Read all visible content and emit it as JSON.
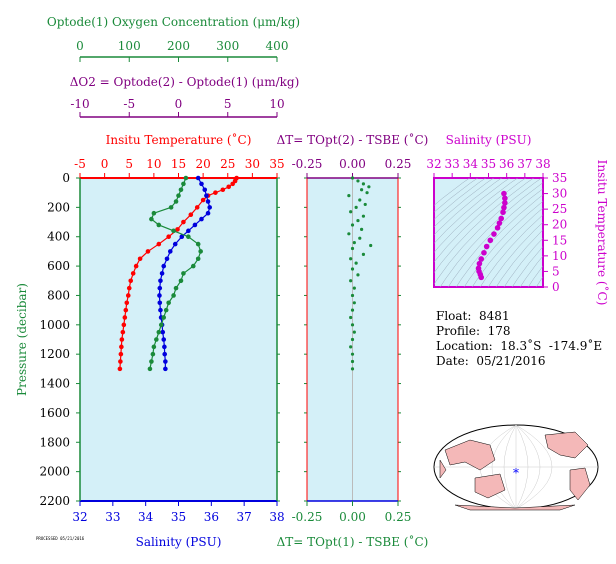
{
  "colors": {
    "bg": "#d4f0f8",
    "red": "#ff0000",
    "blue": "#0000dd",
    "green": "#1a8a3a",
    "purple": "#800080",
    "magenta": "#cc00cc",
    "grid": "#a0c8d8"
  },
  "labels": {
    "oxygen_title": "Optode(1) Oxygen Concentration (μm/kg)",
    "delta_o2_title": "ΔO2 = Optode(2) - Optode(1)   (μm/kg)",
    "temp_title": "Insitu Temperature (˚C)",
    "salinity_bottom": "Salinity (PSU)",
    "pressure_axis": "Pressure (decibar)",
    "dt_top_title": "ΔT= TOpt(2) - TSBE (˚C)",
    "dt_bottom_title": "ΔT= TOpt(1) - TSBE (˚C)",
    "salinity_inset_title": "Salinity (PSU)",
    "inset_temp_axis": "Insitu Temperature (˚C)"
  },
  "info": {
    "float": "Float:  8481",
    "profile": "Profile:  178",
    "location": "Location:  18.3˚S  -174.9˚E",
    "date": "Date:  05/21/2016"
  },
  "footer_tiny": "PROCESSED 05/21/2016",
  "ticks": {
    "oxygen": [
      "0",
      "100",
      "200",
      "300",
      "400"
    ],
    "delta_o2": [
      "-10",
      "-5",
      "0",
      "5",
      "10"
    ],
    "temperature": [
      "-5",
      "0",
      "5",
      "10",
      "15",
      "20",
      "25",
      "30",
      "35"
    ],
    "salinity": [
      "32",
      "33",
      "34",
      "35",
      "36",
      "37",
      "38"
    ],
    "pressure": [
      "0",
      "200",
      "400",
      "600",
      "800",
      "1000",
      "1200",
      "1400",
      "1600",
      "1800",
      "2000",
      "2200"
    ],
    "dt": [
      "-0.25",
      "0.00",
      "0.25"
    ],
    "inset_salinity": [
      "32",
      "33",
      "34",
      "35",
      "36",
      "37",
      "38"
    ],
    "inset_temp": [
      "0",
      "5",
      "10",
      "15",
      "20",
      "25",
      "30",
      "35"
    ]
  },
  "chart_data": [
    {
      "type": "line",
      "title": "Insitu Temperature (˚C)",
      "ylabel": "Pressure (decibar)",
      "ylim": [
        2200,
        0
      ],
      "series": [
        {
          "name": "Insitu Temperature (˚C)",
          "color": "#ff0000",
          "xlim": [
            -5,
            35
          ],
          "points": [
            [
              26.8,
              0
            ],
            [
              26.5,
              20
            ],
            [
              26.0,
              40
            ],
            [
              25.2,
              60
            ],
            [
              24.0,
              80
            ],
            [
              22.5,
              100
            ],
            [
              21.0,
              120
            ],
            [
              20.0,
              150
            ],
            [
              18.8,
              200
            ],
            [
              17.5,
              250
            ],
            [
              16.0,
              300
            ],
            [
              14.8,
              350
            ],
            [
              13.0,
              400
            ],
            [
              11.0,
              450
            ],
            [
              8.8,
              500
            ],
            [
              7.2,
              550
            ],
            [
              6.4,
              600
            ],
            [
              5.8,
              650
            ],
            [
              5.3,
              700
            ],
            [
              5.0,
              750
            ],
            [
              4.8,
              800
            ],
            [
              4.5,
              850
            ],
            [
              4.3,
              900
            ],
            [
              4.1,
              950
            ],
            [
              3.9,
              1000
            ],
            [
              3.7,
              1050
            ],
            [
              3.5,
              1100
            ],
            [
              3.4,
              1150
            ],
            [
              3.3,
              1200
            ],
            [
              3.2,
              1250
            ],
            [
              3.1,
              1300
            ]
          ]
        },
        {
          "name": "Salinity (PSU)",
          "color": "#0000dd",
          "xlim": [
            32,
            38
          ],
          "points": [
            [
              35.6,
              0
            ],
            [
              35.7,
              40
            ],
            [
              35.8,
              80
            ],
            [
              35.85,
              120
            ],
            [
              35.9,
              160
            ],
            [
              35.95,
              200
            ],
            [
              35.9,
              240
            ],
            [
              35.7,
              280
            ],
            [
              35.5,
              320
            ],
            [
              35.3,
              360
            ],
            [
              35.1,
              400
            ],
            [
              34.9,
              450
            ],
            [
              34.75,
              500
            ],
            [
              34.65,
              550
            ],
            [
              34.55,
              600
            ],
            [
              34.5,
              650
            ],
            [
              34.45,
              700
            ],
            [
              34.43,
              750
            ],
            [
              34.42,
              800
            ],
            [
              34.43,
              850
            ],
            [
              34.45,
              900
            ],
            [
              34.47,
              950
            ],
            [
              34.5,
              1000
            ],
            [
              34.52,
              1050
            ],
            [
              34.55,
              1100
            ],
            [
              34.57,
              1150
            ],
            [
              34.58,
              1200
            ],
            [
              34.6,
              1250
            ],
            [
              34.6,
              1300
            ]
          ]
        },
        {
          "name": "Optode(1) Oxygen Concentration (μm/kg)",
          "color": "#1a8a3a",
          "xlim": [
            0,
            400
          ],
          "points": [
            [
              215,
              0
            ],
            [
              210,
              40
            ],
            [
              205,
              80
            ],
            [
              200,
              120
            ],
            [
              195,
              160
            ],
            [
              185,
              200
            ],
            [
              150,
              240
            ],
            [
              145,
              280
            ],
            [
              160,
              320
            ],
            [
              190,
              360
            ],
            [
              220,
              400
            ],
            [
              240,
              450
            ],
            [
              245,
              500
            ],
            [
              240,
              550
            ],
            [
              230,
              600
            ],
            [
              210,
              650
            ],
            [
              205,
              700
            ],
            [
              195,
              750
            ],
            [
              190,
              800
            ],
            [
              180,
              850
            ],
            [
              175,
              900
            ],
            [
              170,
              950
            ],
            [
              165,
              1000
            ],
            [
              160,
              1050
            ],
            [
              155,
              1100
            ],
            [
              150,
              1150
            ],
            [
              148,
              1200
            ],
            [
              145,
              1250
            ],
            [
              142,
              1300
            ]
          ]
        }
      ]
    },
    {
      "type": "scatter",
      "title": "ΔT= TOpt(2) - TSBE (˚C)",
      "xlabel": "ΔT= TOpt(1) - TSBE (˚C)",
      "xlim": [
        -0.25,
        0.25
      ],
      "ylim": [
        2200,
        0
      ],
      "series": [
        {
          "color": "#1a8a3a",
          "points": [
            [
              0.0,
              0
            ],
            [
              0.03,
              20
            ],
            [
              0.06,
              40
            ],
            [
              0.09,
              60
            ],
            [
              0.05,
              80
            ],
            [
              0.08,
              100
            ],
            [
              -0.02,
              120
            ],
            [
              0.04,
              150
            ],
            [
              0.07,
              180
            ],
            [
              0.02,
              200
            ],
            [
              -0.01,
              230
            ],
            [
              0.06,
              260
            ],
            [
              0.03,
              290
            ],
            [
              0.0,
              320
            ],
            [
              0.05,
              350
            ],
            [
              -0.02,
              380
            ],
            [
              0.04,
              410
            ],
            [
              0.01,
              440
            ],
            [
              0.1,
              460
            ],
            [
              0.0,
              480
            ],
            [
              0.06,
              520
            ],
            [
              -0.01,
              550
            ],
            [
              0.02,
              580
            ],
            [
              0.0,
              620
            ],
            [
              0.03,
              660
            ],
            [
              -0.01,
              700
            ],
            [
              0.01,
              750
            ],
            [
              0.0,
              800
            ],
            [
              0.01,
              850
            ],
            [
              0.0,
              900
            ],
            [
              -0.01,
              950
            ],
            [
              0.0,
              1000
            ],
            [
              0.01,
              1050
            ],
            [
              0.0,
              1100
            ],
            [
              -0.01,
              1150
            ],
            [
              0.0,
              1200
            ],
            [
              0.0,
              1250
            ],
            [
              0.0,
              1300
            ]
          ]
        }
      ]
    },
    {
      "type": "scatter",
      "title": "Salinity (PSU)",
      "xlabel": "Salinity (PSU)",
      "ylabel": "Insitu Temperature (˚C)",
      "xlim": [
        32,
        38
      ],
      "ylim": [
        0,
        35
      ],
      "series": [
        {
          "color": "#cc00cc",
          "points": [
            [
              34.6,
              3.1
            ],
            [
              34.55,
              4
            ],
            [
              34.48,
              5
            ],
            [
              34.45,
              6
            ],
            [
              34.5,
              7.5
            ],
            [
              34.6,
              9
            ],
            [
              34.75,
              11
            ],
            [
              34.9,
              13
            ],
            [
              35.1,
              15
            ],
            [
              35.3,
              17
            ],
            [
              35.5,
              19
            ],
            [
              35.6,
              20.5
            ],
            [
              35.7,
              22
            ],
            [
              35.8,
              24
            ],
            [
              35.85,
              25.5
            ],
            [
              35.9,
              27
            ],
            [
              35.9,
              28.5
            ],
            [
              35.85,
              30
            ]
          ]
        }
      ]
    }
  ]
}
